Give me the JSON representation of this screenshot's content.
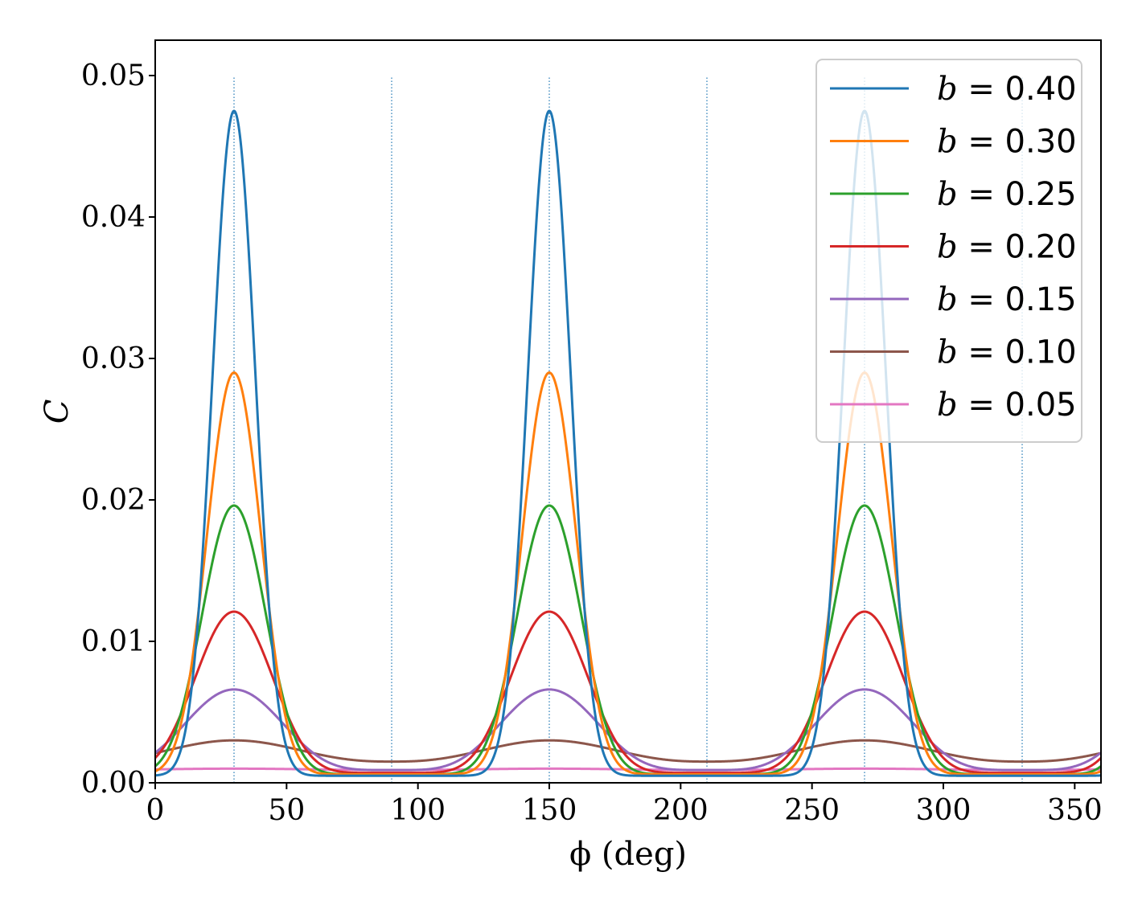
{
  "chart_data": {
    "type": "line",
    "xlabel": "ϕ (deg)",
    "ylabel": "C",
    "xlim": [
      0,
      360
    ],
    "ylim": [
      0,
      0.0525
    ],
    "xticks": [
      0,
      50,
      100,
      150,
      200,
      250,
      300,
      350
    ],
    "xtick_labels": [
      "0",
      "50",
      "100",
      "150",
      "200",
      "250",
      "300",
      "350"
    ],
    "yticks": [
      0,
      0.01,
      0.02,
      0.03,
      0.04,
      0.05
    ],
    "ytick_labels": [
      "0.00",
      "0.01",
      "0.02",
      "0.03",
      "0.04",
      "0.05"
    ],
    "grid": false,
    "legend_position": "top-right",
    "reference_lines": {
      "style": "dotted",
      "x": [
        30,
        90,
        150,
        210,
        270,
        330
      ],
      "y_top": 0.05,
      "color": "#1f77b4"
    },
    "series": [
      {
        "name": "b = 0.40",
        "var": "b",
        "value": "0.40",
        "color": "#1f77b4",
        "peak": 0.0475,
        "trough": 0.0005
      },
      {
        "name": "b = 0.30",
        "var": "b",
        "value": "0.30",
        "color": "#ff7f0e",
        "peak": 0.029,
        "trough": 0.0006
      },
      {
        "name": "b = 0.25",
        "var": "b",
        "value": "0.25",
        "color": "#2ca02c",
        "peak": 0.0196,
        "trough": 0.0006
      },
      {
        "name": "b = 0.20",
        "var": "b",
        "value": "0.20",
        "color": "#d62728",
        "peak": 0.0121,
        "trough": 0.0007
      },
      {
        "name": "b = 0.15",
        "var": "b",
        "value": "0.15",
        "color": "#9467bd",
        "peak": 0.0066,
        "trough": 0.0009
      },
      {
        "name": "b = 0.10",
        "var": "b",
        "value": "0.10",
        "color": "#8c564b",
        "peak": 0.003,
        "trough": 0.0015
      },
      {
        "name": "b = 0.05",
        "var": "b",
        "value": "0.05",
        "color": "#e377c2",
        "peak": 0.001,
        "trough": 0.0009
      }
    ]
  }
}
